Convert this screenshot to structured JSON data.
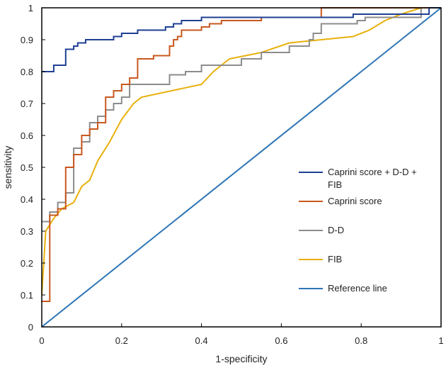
{
  "chart_data": {
    "type": "line",
    "title": "",
    "xlabel": "1-specificity",
    "ylabel": "sensitivity",
    "xlim": [
      0,
      1
    ],
    "ylim": [
      0,
      1
    ],
    "xticks": [
      "0",
      "0.2",
      "0.4",
      "0.6",
      "0.8",
      "1"
    ],
    "yticks": [
      "0",
      "0.1",
      "0.2",
      "0.3",
      "0.4",
      "0.5",
      "0.6",
      "0.7",
      "0.8",
      "0.9",
      "1"
    ],
    "grid": false,
    "legend_position": "right-center",
    "series": [
      {
        "name": "Caprini score + D-D + FIB",
        "color": "#1f3f93",
        "points": [
          [
            0,
            0.8
          ],
          [
            0.03,
            0.8
          ],
          [
            0.03,
            0.82
          ],
          [
            0.06,
            0.82
          ],
          [
            0.06,
            0.87
          ],
          [
            0.08,
            0.87
          ],
          [
            0.08,
            0.88
          ],
          [
            0.09,
            0.88
          ],
          [
            0.09,
            0.89
          ],
          [
            0.11,
            0.89
          ],
          [
            0.11,
            0.9
          ],
          [
            0.18,
            0.9
          ],
          [
            0.18,
            0.91
          ],
          [
            0.2,
            0.91
          ],
          [
            0.2,
            0.92
          ],
          [
            0.24,
            0.92
          ],
          [
            0.24,
            0.93
          ],
          [
            0.31,
            0.93
          ],
          [
            0.31,
            0.94
          ],
          [
            0.33,
            0.94
          ],
          [
            0.33,
            0.95
          ],
          [
            0.35,
            0.95
          ],
          [
            0.35,
            0.96
          ],
          [
            0.4,
            0.96
          ],
          [
            0.4,
            0.97
          ],
          [
            0.78,
            0.97
          ],
          [
            0.78,
            0.98
          ],
          [
            0.97,
            0.98
          ],
          [
            0.97,
            1
          ],
          [
            1,
            1
          ]
        ]
      },
      {
        "name": "Caprini score",
        "color": "#c8581e",
        "points": [
          [
            0,
            0.08
          ],
          [
            0.02,
            0.08
          ],
          [
            0.02,
            0.35
          ],
          [
            0.04,
            0.35
          ],
          [
            0.04,
            0.37
          ],
          [
            0.06,
            0.37
          ],
          [
            0.06,
            0.5
          ],
          [
            0.08,
            0.5
          ],
          [
            0.08,
            0.54
          ],
          [
            0.1,
            0.54
          ],
          [
            0.1,
            0.6
          ],
          [
            0.12,
            0.6
          ],
          [
            0.12,
            0.62
          ],
          [
            0.14,
            0.62
          ],
          [
            0.14,
            0.64
          ],
          [
            0.16,
            0.64
          ],
          [
            0.16,
            0.72
          ],
          [
            0.18,
            0.72
          ],
          [
            0.18,
            0.74
          ],
          [
            0.2,
            0.74
          ],
          [
            0.2,
            0.76
          ],
          [
            0.22,
            0.76
          ],
          [
            0.22,
            0.78
          ],
          [
            0.24,
            0.78
          ],
          [
            0.24,
            0.84
          ],
          [
            0.28,
            0.84
          ],
          [
            0.28,
            0.85
          ],
          [
            0.32,
            0.85
          ],
          [
            0.32,
            0.88
          ],
          [
            0.33,
            0.88
          ],
          [
            0.33,
            0.9
          ],
          [
            0.34,
            0.9
          ],
          [
            0.34,
            0.91
          ],
          [
            0.35,
            0.91
          ],
          [
            0.35,
            0.93
          ],
          [
            0.4,
            0.93
          ],
          [
            0.4,
            0.94
          ],
          [
            0.42,
            0.94
          ],
          [
            0.42,
            0.95
          ],
          [
            0.45,
            0.95
          ],
          [
            0.45,
            0.96
          ],
          [
            0.55,
            0.96
          ],
          [
            0.55,
            0.97
          ],
          [
            0.7,
            0.97
          ],
          [
            0.7,
            1
          ],
          [
            1,
            1
          ]
        ]
      },
      {
        "name": "D-D",
        "color": "#8c8c8c",
        "points": [
          [
            0,
            0.33
          ],
          [
            0.02,
            0.33
          ],
          [
            0.02,
            0.36
          ],
          [
            0.04,
            0.36
          ],
          [
            0.04,
            0.39
          ],
          [
            0.06,
            0.39
          ],
          [
            0.06,
            0.42
          ],
          [
            0.08,
            0.42
          ],
          [
            0.08,
            0.56
          ],
          [
            0.1,
            0.56
          ],
          [
            0.1,
            0.58
          ],
          [
            0.12,
            0.58
          ],
          [
            0.12,
            0.64
          ],
          [
            0.14,
            0.64
          ],
          [
            0.14,
            0.66
          ],
          [
            0.16,
            0.66
          ],
          [
            0.16,
            0.68
          ],
          [
            0.18,
            0.68
          ],
          [
            0.18,
            0.7
          ],
          [
            0.2,
            0.7
          ],
          [
            0.2,
            0.72
          ],
          [
            0.22,
            0.72
          ],
          [
            0.22,
            0.76
          ],
          [
            0.32,
            0.76
          ],
          [
            0.32,
            0.79
          ],
          [
            0.36,
            0.79
          ],
          [
            0.36,
            0.8
          ],
          [
            0.4,
            0.8
          ],
          [
            0.4,
            0.82
          ],
          [
            0.5,
            0.82
          ],
          [
            0.5,
            0.84
          ],
          [
            0.55,
            0.84
          ],
          [
            0.55,
            0.86
          ],
          [
            0.62,
            0.86
          ],
          [
            0.62,
            0.88
          ],
          [
            0.67,
            0.88
          ],
          [
            0.67,
            0.9
          ],
          [
            0.68,
            0.9
          ],
          [
            0.68,
            0.92
          ],
          [
            0.7,
            0.92
          ],
          [
            0.7,
            0.95
          ],
          [
            0.79,
            0.95
          ],
          [
            0.79,
            0.96
          ],
          [
            0.81,
            0.96
          ],
          [
            0.81,
            0.97
          ],
          [
            0.95,
            0.97
          ],
          [
            0.95,
            1
          ]
        ]
      },
      {
        "name": "FIB",
        "color": "#e8b00c",
        "points": [
          [
            0,
            0.1
          ],
          [
            0.01,
            0.3
          ],
          [
            0.03,
            0.34
          ],
          [
            0.05,
            0.37
          ],
          [
            0.08,
            0.39
          ],
          [
            0.1,
            0.44
          ],
          [
            0.12,
            0.46
          ],
          [
            0.14,
            0.52
          ],
          [
            0.17,
            0.58
          ],
          [
            0.2,
            0.65
          ],
          [
            0.23,
            0.7
          ],
          [
            0.25,
            0.72
          ],
          [
            0.4,
            0.76
          ],
          [
            0.43,
            0.8
          ],
          [
            0.47,
            0.84
          ],
          [
            0.55,
            0.86
          ],
          [
            0.62,
            0.89
          ],
          [
            0.7,
            0.9
          ],
          [
            0.78,
            0.91
          ],
          [
            0.82,
            0.93
          ],
          [
            0.86,
            0.96
          ],
          [
            0.9,
            0.98
          ],
          [
            0.95,
            1
          ]
        ]
      },
      {
        "name": "Reference line",
        "color": "#2e75b6",
        "points": [
          [
            0,
            0
          ],
          [
            1,
            1
          ]
        ]
      }
    ]
  }
}
